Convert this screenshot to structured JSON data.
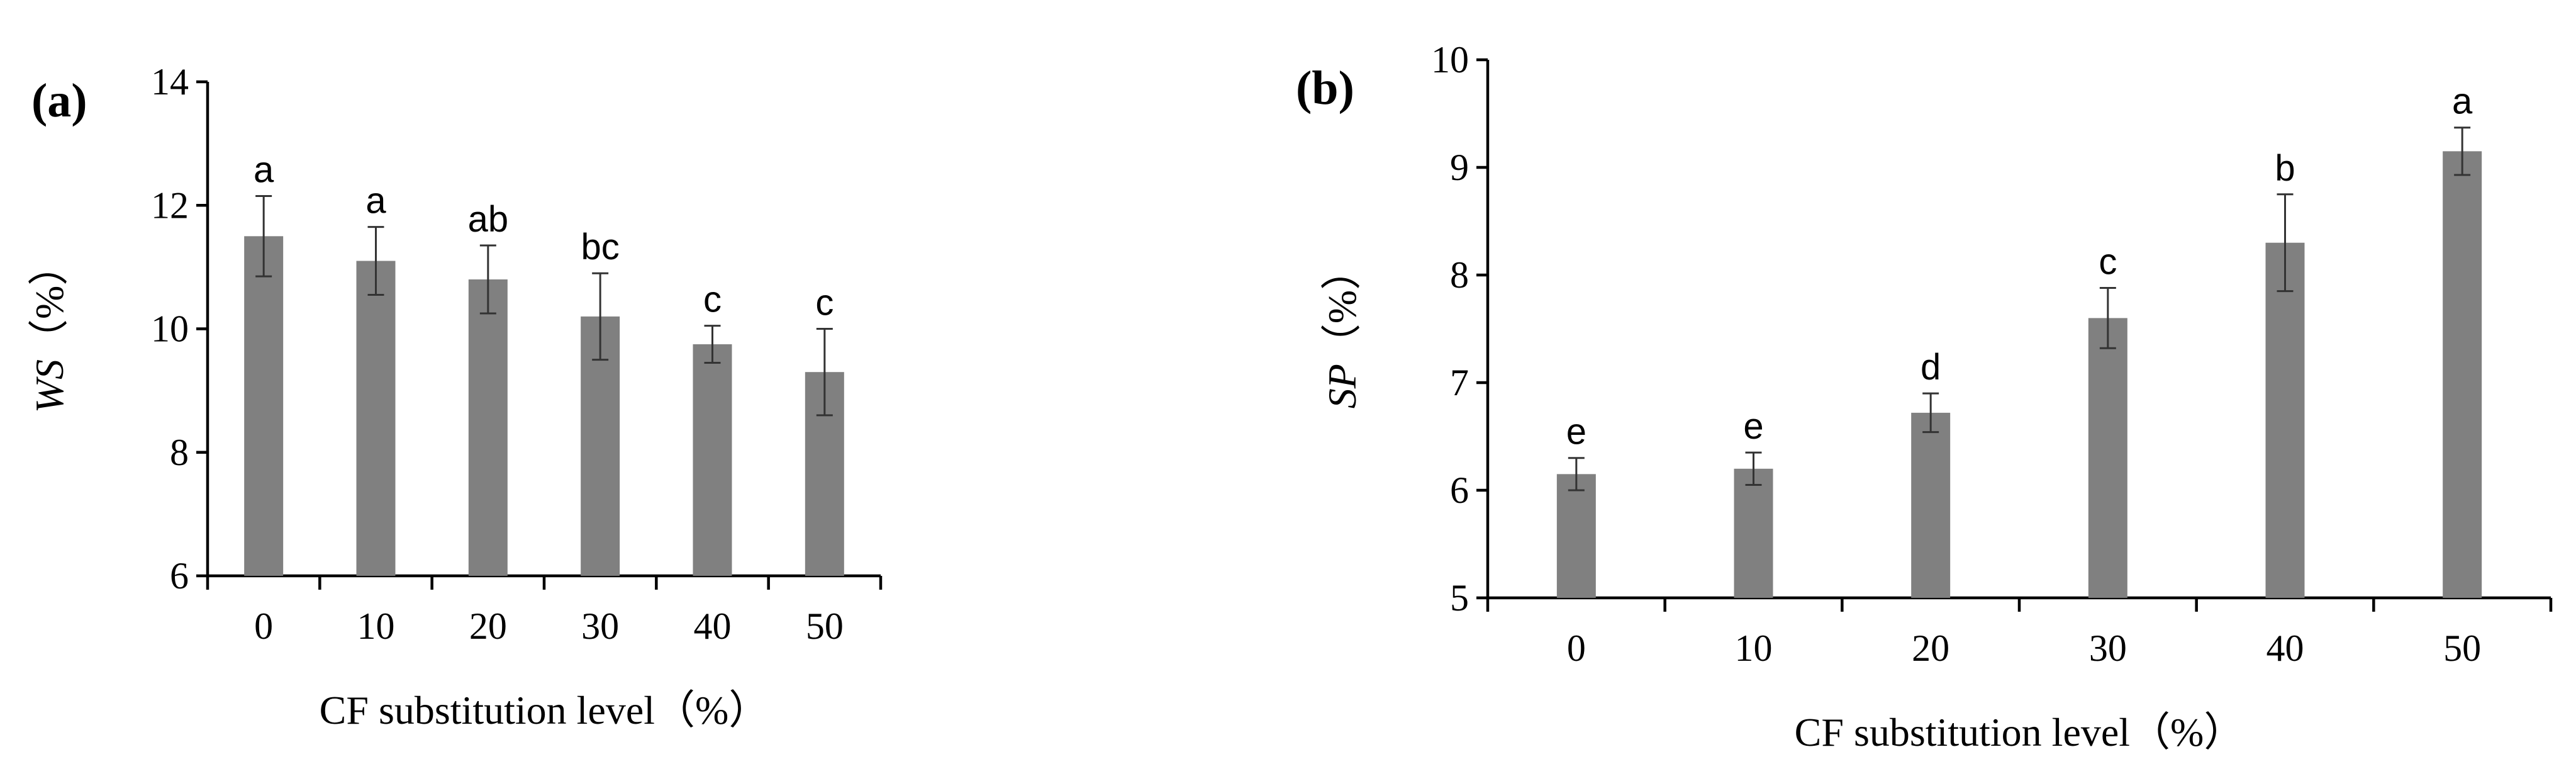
{
  "chart_data": [
    {
      "type": "bar",
      "panel_label": "(a)",
      "categories": [
        "0",
        "10",
        "20",
        "30",
        "40",
        "50"
      ],
      "values": [
        11.5,
        11.1,
        10.8,
        10.2,
        9.75,
        9.3
      ],
      "errors": [
        0.65,
        0.55,
        0.55,
        0.7,
        0.3,
        0.7
      ],
      "significance": [
        "a",
        "a",
        "ab",
        "bc",
        "c",
        "c"
      ],
      "ylabel_main": "WS",
      "ylabel_unit": "（%）",
      "xlabel": "CF substitution level（%）",
      "ylim": [
        6,
        14
      ],
      "yticks": [
        6,
        8,
        10,
        12,
        14
      ],
      "bar_color": "#808080"
    },
    {
      "type": "bar",
      "panel_label": "(b)",
      "categories": [
        "0",
        "10",
        "20",
        "30",
        "40",
        "50"
      ],
      "values": [
        6.15,
        6.2,
        6.72,
        7.6,
        8.3,
        9.15
      ],
      "errors": [
        0.15,
        0.15,
        0.18,
        0.28,
        0.45,
        0.22
      ],
      "significance": [
        "e",
        "e",
        "d",
        "c",
        "b",
        "a"
      ],
      "ylabel_main": "SP",
      "ylabel_unit": "（%）",
      "xlabel": "CF substitution level（%）",
      "ylim": [
        5,
        10
      ],
      "yticks": [
        5,
        6,
        7,
        8,
        9,
        10
      ],
      "bar_color": "#808080"
    }
  ]
}
